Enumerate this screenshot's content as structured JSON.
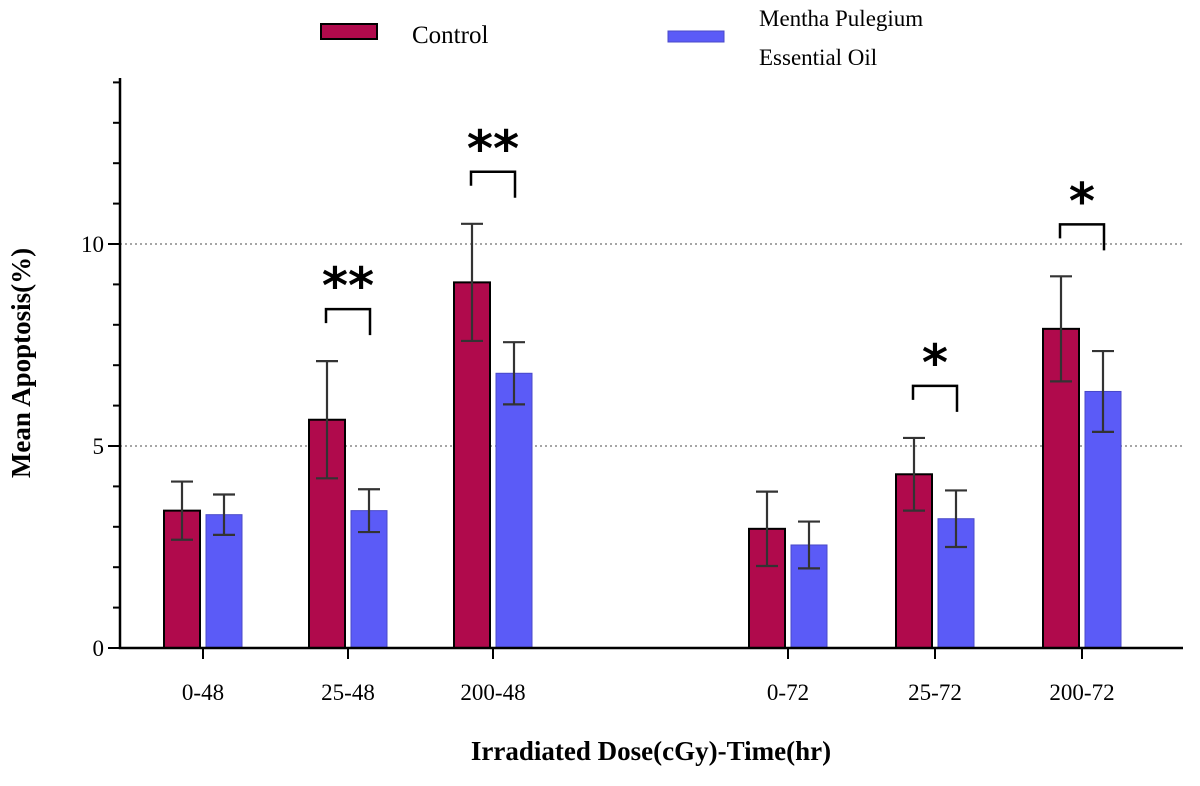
{
  "chart_data": {
    "type": "bar",
    "xlabel": "Irradiated Dose(cGy)-Time(hr)",
    "ylabel": "Mean Apoptosis(%)",
    "ylim": [
      0,
      14
    ],
    "yticks": [
      0,
      5,
      10
    ],
    "grid": "horizontal dotted at 5 and 10",
    "legend_position": "top-center",
    "categories": [
      "0-48",
      "25-48",
      "200-48",
      "0-72",
      "25-72",
      "200-72"
    ],
    "series": [
      {
        "name": "Control",
        "color": "#B00A4C",
        "values": [
          3.4,
          5.65,
          9.05,
          2.95,
          4.3,
          7.9
        ],
        "errors": [
          0.72,
          1.45,
          1.45,
          0.92,
          0.9,
          1.3
        ]
      },
      {
        "name_lines": [
          "Mentha Pulegium",
          "Essential Oil"
        ],
        "color": "#5B5BF7",
        "values": [
          3.3,
          3.4,
          6.8,
          2.55,
          3.2,
          6.35
        ],
        "errors": [
          0.5,
          0.53,
          0.77,
          0.58,
          0.7,
          1.0
        ]
      }
    ],
    "annotations": [
      {
        "category": "25-48",
        "text": "**"
      },
      {
        "category": "200-48",
        "text": "**"
      },
      {
        "category": "25-72",
        "text": "*"
      },
      {
        "category": "200-72",
        "text": "*"
      }
    ]
  }
}
